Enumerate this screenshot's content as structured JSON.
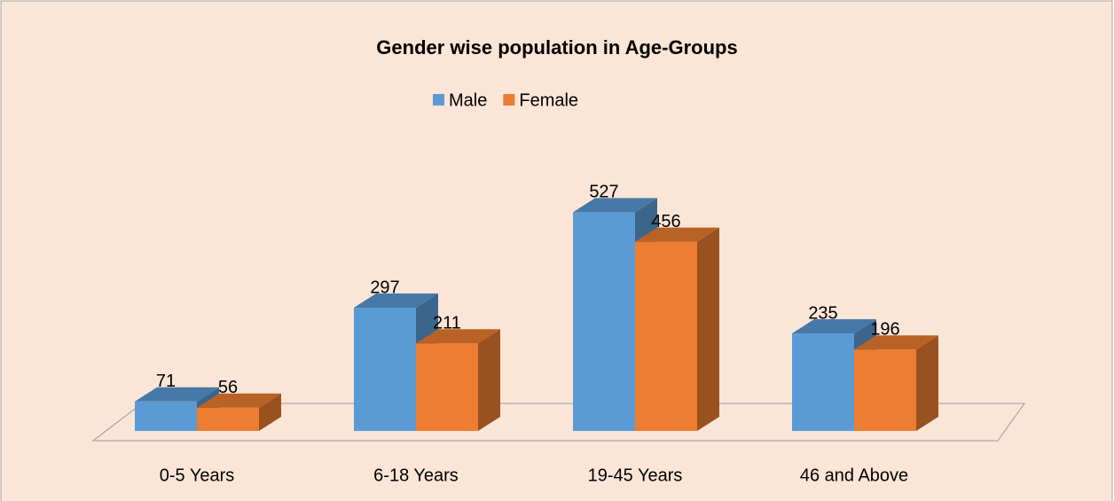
{
  "chart_data": {
    "type": "bar3d",
    "title": "Gender wise population in Age-Groups",
    "categories": [
      "0-5 Years",
      "6-18 Years",
      "19-45 Years",
      "46 and Above"
    ],
    "series": [
      {
        "name": "Male",
        "color": "#5b9bd5",
        "values": [
          71,
          297,
          527,
          235
        ]
      },
      {
        "name": "Female",
        "color": "#ed7d31",
        "values": [
          56,
          211,
          456,
          196
        ]
      }
    ],
    "legend": "top"
  }
}
